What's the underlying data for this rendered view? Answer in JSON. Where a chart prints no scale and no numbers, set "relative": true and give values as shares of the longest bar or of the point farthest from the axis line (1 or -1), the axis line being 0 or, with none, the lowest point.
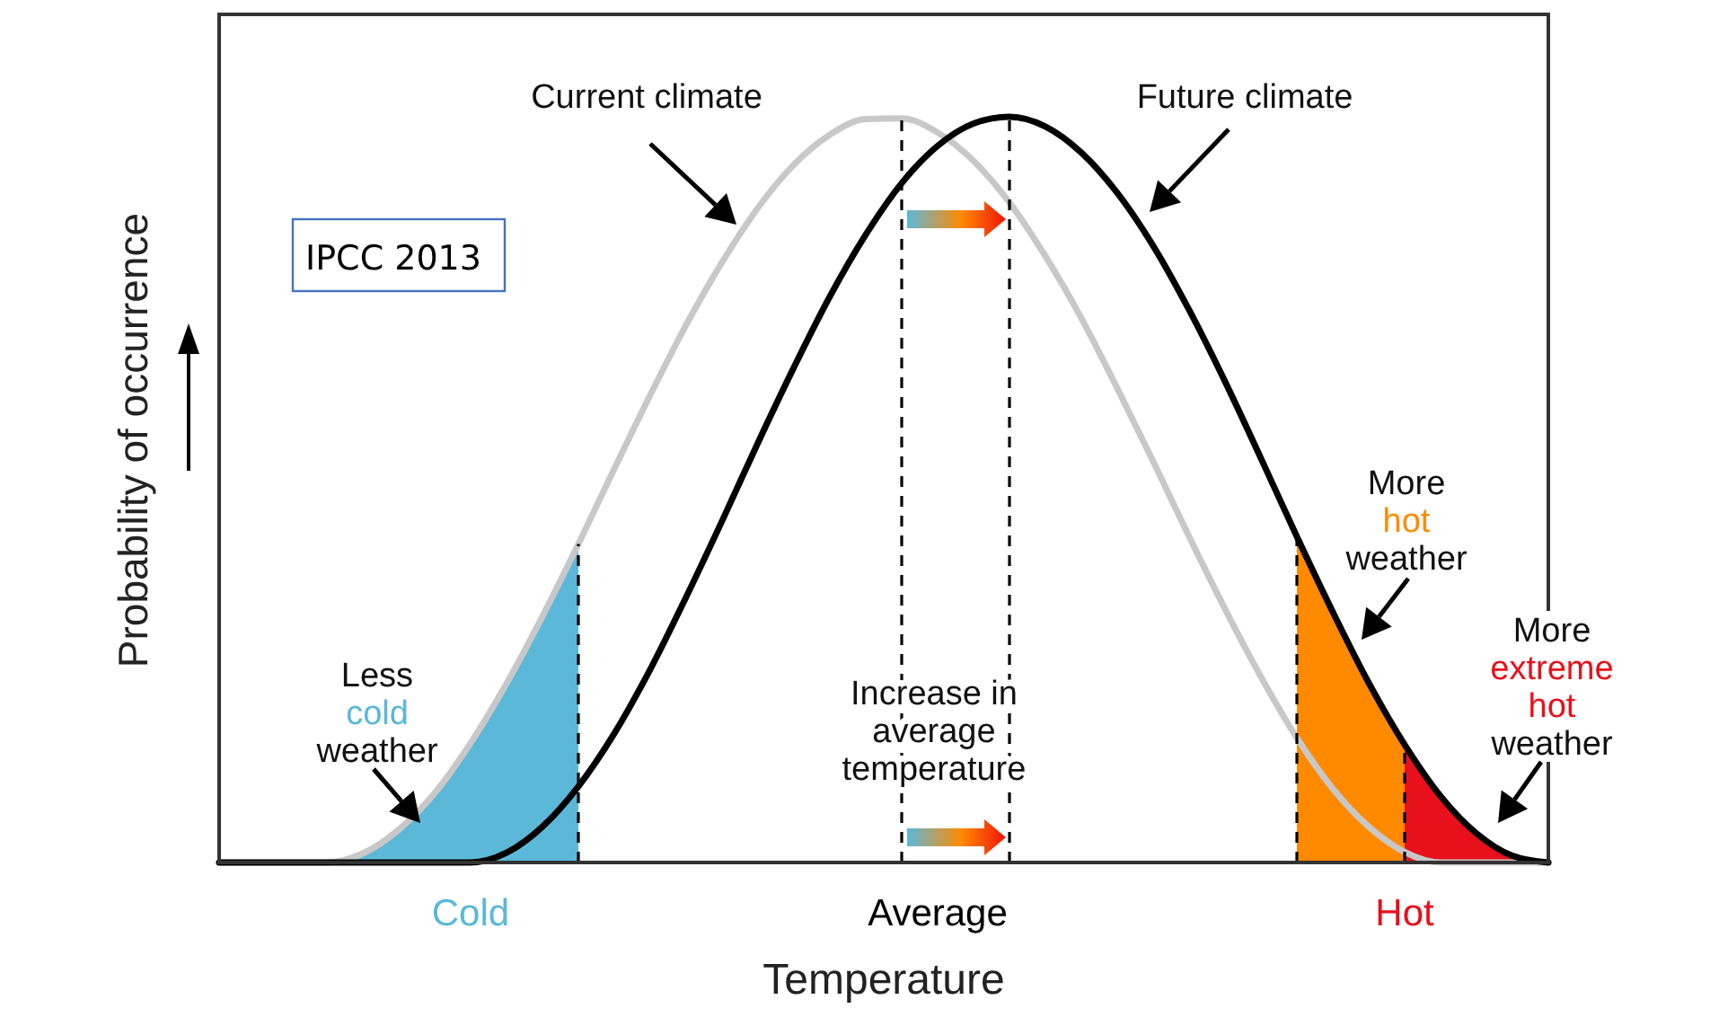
{
  "chart_data": {
    "type": "line",
    "relative": true,
    "xlabel": "Temperature",
    "ylabel": "Probability of occurrence",
    "categories": [
      null,
      null,
      null,
      null,
      null,
      null,
      null,
      "Cold",
      null,
      null,
      null,
      null,
      null,
      null,
      null,
      null,
      null,
      null,
      null,
      null,
      "Average",
      null,
      null,
      null,
      null,
      null,
      null,
      null,
      null,
      null,
      null,
      null,
      null,
      "Hot",
      null,
      null,
      null,
      null
    ],
    "marker": "none",
    "line_style": "solid",
    "series": [
      {
        "type": "area",
        "color": "#5bb8d9",
        "values": [
          0,
          0,
          0,
          0,
          0.012,
          0.044,
          0.093,
          0.16,
          0.24,
          0.33,
          0.427,
          null,
          null,
          null,
          null,
          null,
          null,
          null,
          null,
          null,
          null,
          null,
          null,
          null,
          null,
          null,
          null,
          null,
          null,
          null,
          null,
          null,
          null,
          null,
          null,
          null,
          null,
          null
        ]
      },
      {
        "type": "area",
        "color": "#ff8a00",
        "values": [
          null,
          null,
          null,
          null,
          null,
          null,
          null,
          null,
          null,
          null,
          null,
          null,
          null,
          null,
          null,
          null,
          null,
          null,
          null,
          null,
          null,
          null,
          null,
          null,
          null,
          null,
          null,
          null,
          null,
          null,
          0.437,
          0.336,
          0.241,
          0.158,
          null,
          null,
          null,
          null
        ]
      },
      {
        "type": "area",
        "color": "#e8101a",
        "values": [
          null,
          null,
          null,
          null,
          null,
          null,
          null,
          null,
          null,
          null,
          null,
          null,
          null,
          null,
          null,
          null,
          null,
          null,
          null,
          null,
          null,
          null,
          null,
          null,
          null,
          null,
          null,
          null,
          null,
          null,
          null,
          null,
          null,
          0.158,
          0.089,
          0.039,
          0.009,
          0
        ]
      },
      {
        "name": "Current climate",
        "color": "#c8c8c8",
        "values": [
          0,
          0,
          0,
          0,
          0.012,
          0.044,
          0.093,
          0.16,
          0.24,
          0.33,
          0.427,
          0.528,
          0.627,
          0.721,
          0.805,
          0.878,
          0.936,
          0.976,
          0.997,
          0.998,
          0.979,
          0.941,
          0.885,
          0.813,
          0.73,
          0.636,
          0.538,
          0.437,
          0.34,
          0.249,
          0.167,
          0.099,
          0.048,
          0.014,
          0,
          0,
          0,
          0
        ]
      },
      {
        "name": "Future climate",
        "color": "#000000",
        "values": [
          0,
          0,
          0,
          0,
          0,
          0,
          0,
          0,
          0.013,
          0.048,
          0.102,
          0.173,
          0.259,
          0.356,
          0.458,
          0.563,
          0.664,
          0.759,
          0.842,
          0.911,
          0.961,
          0.991,
          1.0,
          0.987,
          0.952,
          0.898,
          0.827,
          0.741,
          0.645,
          0.542,
          0.437,
          0.336,
          0.241,
          0.158,
          0.089,
          0.039,
          0.009,
          0
        ]
      }
    ],
    "annotations": [
      "IPCC 2013",
      "Less cold weather",
      "More hot weather",
      "More extreme hot weather",
      "Increase in average temperature"
    ]
  }
}
